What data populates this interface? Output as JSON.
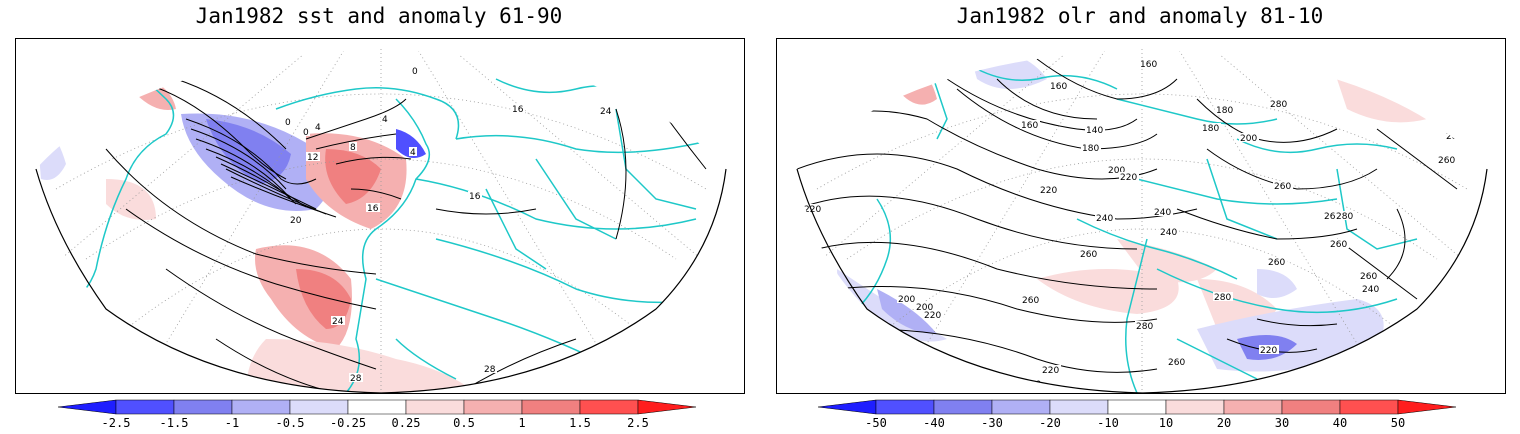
{
  "titles": {
    "left": "Jan1982 sst and anomaly 61-90",
    "right": "Jan1982 olr and anomaly 81-10"
  },
  "colorbars": {
    "left": {
      "ticks": [
        "-2.5",
        "-1.5",
        "-1",
        "-0.5",
        "-0.25",
        "0.25",
        "0.5",
        "1",
        "1.5",
        "2.5"
      ]
    },
    "right": {
      "ticks": [
        "-50",
        "-40",
        "-30",
        "-20",
        "-10",
        "10",
        "20",
        "30",
        "40",
        "50"
      ]
    }
  },
  "palette": {
    "neg": [
      "#1e1eff",
      "#5050ff",
      "#8080f0",
      "#b0b0f5",
      "#dcdcfa"
    ],
    "pos": [
      "#fadcdc",
      "#f5b0b0",
      "#f08080",
      "#ff5050",
      "#ff1e1e"
    ],
    "coast": "#1ec8c8"
  },
  "contour_labels": {
    "left": [
      "28",
      "20",
      "0",
      "0",
      "4",
      "8",
      "12",
      "16",
      "20",
      "24",
      "28",
      "28",
      "28",
      "24",
      "16",
      "0",
      "4",
      "4",
      "28",
      "16"
    ],
    "right": [
      "280",
      "260",
      "240",
      "220",
      "200",
      "160",
      "160",
      "140",
      "180",
      "180",
      "160",
      "180",
      "200",
      "200",
      "220",
      "220",
      "240",
      "240",
      "240",
      "260",
      "280",
      "260",
      "260",
      "280",
      "280",
      "260",
      "260",
      "200",
      "220",
      "220",
      "240",
      "260",
      "280",
      "240",
      "240",
      "220",
      "260",
      "260",
      "280",
      "280",
      "260"
    ]
  }
}
